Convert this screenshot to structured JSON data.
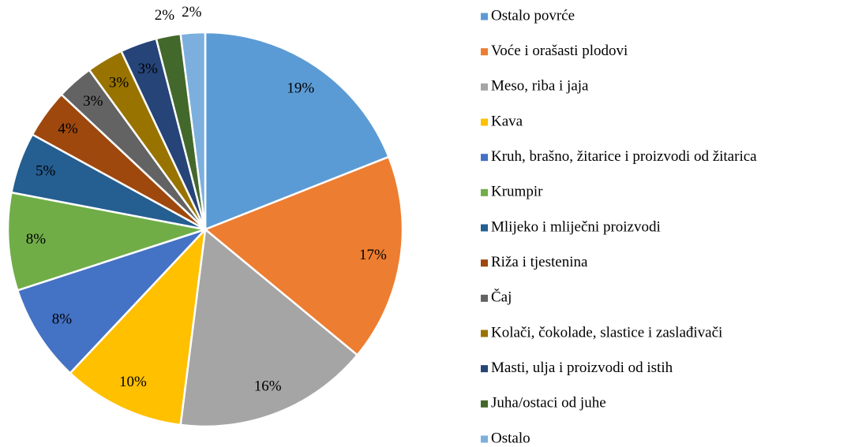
{
  "chart_data": {
    "type": "pie",
    "categories": [
      "Ostalo povrće",
      "Voće i orašasti plodovi",
      "Meso, riba i jaja",
      "Kava",
      "Kruh, brašno, žitarice i proizvodi od žitarica",
      "Krumpir",
      "Mlijeko i mliječni proizvodi",
      "Riža i tjestenina",
      "Čaj",
      "Kolači, čokolade, slastice i zaslađivači",
      "Masti, ulja i proizvodi od istih",
      "Juha/ostaci od juhe",
      "Ostalo"
    ],
    "values": [
      19,
      17,
      16,
      10,
      8,
      8,
      5,
      4,
      3,
      3,
      3,
      2,
      2
    ],
    "value_labels": [
      "19%",
      "17%",
      "16%",
      "10%",
      "8%",
      "8%",
      "5%",
      "4%",
      "3%",
      "3%",
      "3%",
      "2%",
      "2%"
    ],
    "colors": [
      "#5B9BD5",
      "#ED7D31",
      "#A5A5A5",
      "#FFC000",
      "#4472C4",
      "#70AD47",
      "#255E91",
      "#9E480E",
      "#636363",
      "#997300",
      "#264478",
      "#43682B",
      "#7CAFDD"
    ],
    "legend": "right"
  }
}
